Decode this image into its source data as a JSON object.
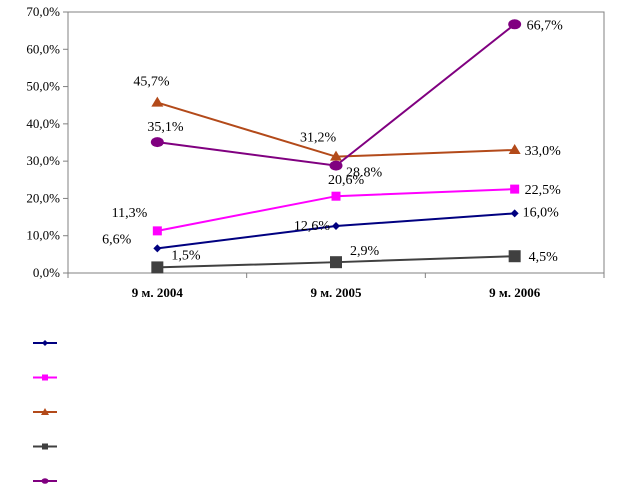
{
  "chart_data": {
    "type": "line",
    "categories": [
      "9 м. 2004",
      "9 м. 2005",
      "9 м. 2006"
    ],
    "ylim": [
      0,
      70
    ],
    "yticks": [
      "0,0%",
      "10,0%",
      "20,0%",
      "30,0%",
      "40,0%",
      "50,0%",
      "60,0%",
      "70,0%"
    ],
    "grid": false,
    "legend_position": "bottom-left",
    "series": [
      {
        "values": [
          6.6,
          12.6,
          16.0
        ],
        "labels": [
          "6,6%",
          "12,6%",
          "16,0%"
        ],
        "color": "#000080",
        "marker": "diamond"
      },
      {
        "values": [
          11.3,
          20.6,
          22.5
        ],
        "labels": [
          "11,3%",
          "20,6%",
          "22,5%"
        ],
        "color": "#ff00ff",
        "marker": "square"
      },
      {
        "values": [
          45.7,
          31.2,
          33.0
        ],
        "labels": [
          "45,7%",
          "31,2%",
          "33,0%"
        ],
        "color": "#b34a1a",
        "marker": "triangle"
      },
      {
        "values": [
          1.5,
          2.9,
          4.5
        ],
        "labels": [
          "1,5%",
          "2,9%",
          "4,5%"
        ],
        "color": "#404040",
        "marker": "square-large"
      },
      {
        "values": [
          35.1,
          28.8,
          66.7
        ],
        "labels": [
          "35,1%",
          "28.8%",
          "66,7%"
        ],
        "color": "#800080",
        "marker": "circle"
      }
    ]
  }
}
